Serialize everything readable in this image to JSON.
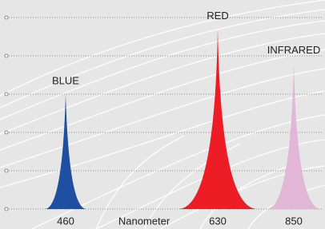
{
  "chart_data": {
    "type": "spectrum",
    "x_label": "Nanometer",
    "series": [
      {
        "name": "BLUE",
        "color": "#1e4fa1",
        "x": "460",
        "value": 3
      },
      {
        "name": "RED",
        "color": "#ee1c25",
        "x": "630",
        "value": 4.7
      },
      {
        "name": "INFRARED",
        "color": "#e1b6d6",
        "x": "850",
        "value": 3.8
      }
    ],
    "ylim": [
      0,
      5
    ],
    "yticks": [
      0,
      1,
      2,
      3,
      4,
      5
    ],
    "grid": true
  }
}
